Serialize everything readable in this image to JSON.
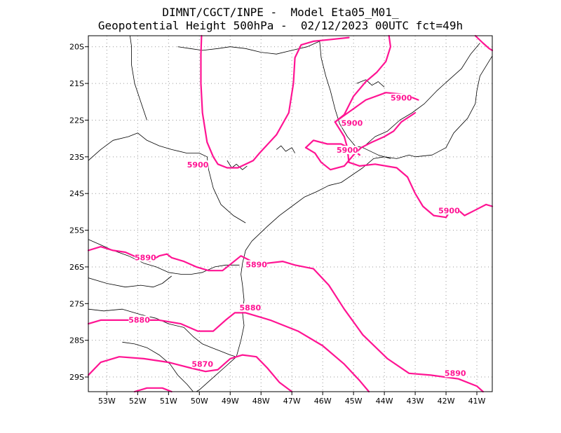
{
  "title": {
    "line1": "DIMNT/CGCT/INPE -  Model Eta05_M01_",
    "line2": "Geopotential Height 500hPa -  02/12/2023 00UTC fct=49h"
  },
  "colors": {
    "contour": "#ff1493",
    "coast": "#000000",
    "grid": "#999999",
    "frame": "#000000"
  },
  "map": {
    "lon_range": [
      -53.6,
      -40.5
    ],
    "lat_range": [
      -29.4,
      -19.7
    ],
    "grid_lines": "dotted",
    "lon_ticks": [
      {
        "value": -53,
        "label": "53W"
      },
      {
        "value": -52,
        "label": "52W"
      },
      {
        "value": -51,
        "label": "51W"
      },
      {
        "value": -50,
        "label": "50W"
      },
      {
        "value": -49,
        "label": "49W"
      },
      {
        "value": -48,
        "label": "48W"
      },
      {
        "value": -47,
        "label": "47W"
      },
      {
        "value": -46,
        "label": "46W"
      },
      {
        "value": -45,
        "label": "45W"
      },
      {
        "value": -44,
        "label": "44W"
      },
      {
        "value": -43,
        "label": "43W"
      },
      {
        "value": -42,
        "label": "42W"
      },
      {
        "value": -41,
        "label": "41W"
      }
    ],
    "lat_ticks": [
      {
        "value": -20,
        "label": "20S"
      },
      {
        "value": -21,
        "label": "21S"
      },
      {
        "value": -22,
        "label": "22S"
      },
      {
        "value": -23,
        "label": "23S"
      },
      {
        "value": -24,
        "label": "24S"
      },
      {
        "value": -25,
        "label": "25S"
      },
      {
        "value": -26,
        "label": "26S"
      },
      {
        "value": -27,
        "label": "27S"
      },
      {
        "value": -28,
        "label": "28S"
      },
      {
        "value": -29,
        "label": "29S"
      }
    ],
    "contour_labels": [
      {
        "text": "5900",
        "lon": -50.05,
        "lat": -23.25
      },
      {
        "text": "5900",
        "lon": -43.45,
        "lat": -21.43
      },
      {
        "text": "5900",
        "lon": -45.05,
        "lat": -22.12
      },
      {
        "text": "5900",
        "lon": -45.2,
        "lat": -22.85
      },
      {
        "text": "5900",
        "lon": -41.9,
        "lat": -24.5
      },
      {
        "text": "5890",
        "lon": -51.75,
        "lat": -25.78
      },
      {
        "text": "5890",
        "lon": -48.15,
        "lat": -25.97
      },
      {
        "text": "5890",
        "lon": -41.7,
        "lat": -28.93
      },
      {
        "text": "5880",
        "lon": -51.95,
        "lat": -27.48
      },
      {
        "text": "5880",
        "lon": -48.35,
        "lat": -27.15
      },
      {
        "text": "5870",
        "lon": -49.9,
        "lat": -28.68
      }
    ],
    "contours": [
      [
        [
          -49.93,
          -19.7
        ],
        [
          -49.95,
          -20.2
        ],
        [
          -49.95,
          -21.0
        ],
        [
          -49.9,
          -21.8
        ],
        [
          -49.75,
          -22.6
        ],
        [
          -49.55,
          -23.0
        ],
        [
          -49.4,
          -23.2
        ],
        [
          -49.1,
          -23.3
        ],
        [
          -48.75,
          -23.3
        ],
        [
          -48.25,
          -23.1
        ],
        [
          -48.05,
          -22.9
        ],
        [
          -47.5,
          -22.4
        ],
        [
          -47.1,
          -21.8
        ],
        [
          -46.95,
          -21.0
        ],
        [
          -46.9,
          -20.3
        ],
        [
          -46.7,
          -19.95
        ],
        [
          -46.3,
          -19.85
        ],
        [
          -45.7,
          -19.8
        ],
        [
          -45.15,
          -19.75
        ]
      ],
      [
        [
          -43.85,
          -19.7
        ],
        [
          -43.8,
          -20.0
        ],
        [
          -43.95,
          -20.4
        ],
        [
          -44.25,
          -20.7
        ],
        [
          -44.6,
          -20.95
        ],
        [
          -45.0,
          -21.35
        ],
        [
          -45.3,
          -21.85
        ],
        [
          -45.6,
          -22.05
        ]
      ],
      [
        [
          -45.6,
          -22.05
        ],
        [
          -45.1,
          -21.75
        ],
        [
          -44.6,
          -21.45
        ],
        [
          -43.95,
          -21.25
        ],
        [
          -43.35,
          -21.3
        ],
        [
          -42.9,
          -21.45
        ]
      ],
      [
        [
          -45.6,
          -22.05
        ],
        [
          -45.3,
          -22.45
        ],
        [
          -45.2,
          -22.75
        ],
        [
          -45.15,
          -23.15
        ],
        [
          -44.8,
          -23.25
        ],
        [
          -44.3,
          -23.2
        ],
        [
          -43.6,
          -23.3
        ],
        [
          -43.25,
          -23.55
        ],
        [
          -43.0,
          -24.0
        ],
        [
          -42.75,
          -24.35
        ],
        [
          -42.4,
          -24.6
        ],
        [
          -42.0,
          -24.65
        ],
        [
          -41.8,
          -24.4
        ],
        [
          -41.6,
          -24.45
        ],
        [
          -41.4,
          -24.6
        ],
        [
          -41.05,
          -24.45
        ],
        [
          -40.7,
          -24.3
        ],
        [
          -40.5,
          -24.35
        ]
      ],
      [
        [
          -46.55,
          -22.75
        ],
        [
          -46.25,
          -22.9
        ],
        [
          -46.05,
          -23.15
        ],
        [
          -45.75,
          -23.35
        ],
        [
          -45.3,
          -23.25
        ],
        [
          -45.0,
          -22.95
        ],
        [
          -44.75,
          -22.75
        ],
        [
          -44.4,
          -22.6
        ],
        [
          -44.0,
          -22.45
        ],
        [
          -43.7,
          -22.3
        ],
        [
          -43.45,
          -22.05
        ],
        [
          -43.0,
          -21.8
        ]
      ],
      [
        [
          -46.55,
          -22.75
        ],
        [
          -46.3,
          -22.55
        ],
        [
          -45.85,
          -22.65
        ],
        [
          -45.4,
          -22.65
        ],
        [
          -45.05,
          -22.8
        ],
        [
          -44.8,
          -22.95
        ]
      ],
      [
        [
          -41.05,
          -19.7
        ],
        [
          -40.8,
          -19.9
        ],
        [
          -40.6,
          -20.05
        ],
        [
          -40.5,
          -20.1
        ]
      ],
      [
        [
          -53.6,
          -25.55
        ],
        [
          -53.2,
          -25.45
        ],
        [
          -52.8,
          -25.55
        ],
        [
          -52.4,
          -25.6
        ],
        [
          -52.0,
          -25.75
        ],
        [
          -51.6,
          -25.85
        ],
        [
          -51.3,
          -25.7
        ],
        [
          -51.05,
          -25.65
        ],
        [
          -50.9,
          -25.75
        ],
        [
          -50.5,
          -25.85
        ],
        [
          -50.1,
          -26.0
        ],
        [
          -49.7,
          -26.1
        ],
        [
          -49.25,
          -26.1
        ],
        [
          -48.95,
          -25.9
        ],
        [
          -48.65,
          -25.7
        ],
        [
          -48.3,
          -25.85
        ],
        [
          -47.8,
          -25.9
        ],
        [
          -47.3,
          -25.85
        ],
        [
          -46.9,
          -25.95
        ],
        [
          -46.3,
          -26.05
        ],
        [
          -45.8,
          -26.5
        ],
        [
          -45.3,
          -27.15
        ],
        [
          -44.7,
          -27.85
        ],
        [
          -43.9,
          -28.5
        ],
        [
          -43.2,
          -28.9
        ],
        [
          -42.5,
          -28.95
        ],
        [
          -41.6,
          -29.05
        ],
        [
          -41.0,
          -29.25
        ],
        [
          -40.8,
          -29.4
        ]
      ],
      [
        [
          -53.6,
          -27.55
        ],
        [
          -53.2,
          -27.45
        ],
        [
          -52.6,
          -27.45
        ],
        [
          -52.0,
          -27.45
        ],
        [
          -51.3,
          -27.45
        ],
        [
          -50.6,
          -27.55
        ],
        [
          -50.05,
          -27.75
        ],
        [
          -49.55,
          -27.75
        ],
        [
          -49.15,
          -27.45
        ],
        [
          -48.85,
          -27.25
        ],
        [
          -48.5,
          -27.25
        ],
        [
          -47.7,
          -27.45
        ],
        [
          -46.8,
          -27.75
        ],
        [
          -46.0,
          -28.15
        ],
        [
          -45.3,
          -28.65
        ],
        [
          -44.8,
          -29.1
        ],
        [
          -44.5,
          -29.4
        ]
      ],
      [
        [
          -53.6,
          -28.95
        ],
        [
          -53.2,
          -28.6
        ],
        [
          -52.6,
          -28.45
        ],
        [
          -51.8,
          -28.5
        ],
        [
          -51.0,
          -28.6
        ],
        [
          -50.3,
          -28.75
        ],
        [
          -49.8,
          -28.85
        ],
        [
          -49.4,
          -28.8
        ],
        [
          -49.0,
          -28.5
        ],
        [
          -48.6,
          -28.4
        ],
        [
          -48.15,
          -28.45
        ],
        [
          -47.8,
          -28.75
        ],
        [
          -47.4,
          -29.15
        ],
        [
          -47.0,
          -29.4
        ]
      ],
      [
        [
          -52.1,
          -29.4
        ],
        [
          -51.7,
          -29.3
        ],
        [
          -51.2,
          -29.3
        ],
        [
          -50.9,
          -29.4
        ]
      ]
    ],
    "coastline": [
      [
        [
          -40.5,
          -20.25
        ],
        [
          -40.9,
          -20.8
        ],
        [
          -41.0,
          -21.2
        ],
        [
          -41.05,
          -21.55
        ],
        [
          -41.3,
          -21.95
        ],
        [
          -41.75,
          -22.35
        ],
        [
          -42.0,
          -22.75
        ],
        [
          -42.45,
          -22.95
        ],
        [
          -43.0,
          -23.0
        ],
        [
          -43.2,
          -22.95
        ],
        [
          -43.6,
          -23.05
        ],
        [
          -44.0,
          -23.0
        ],
        [
          -44.35,
          -23.05
        ],
        [
          -44.7,
          -23.3
        ],
        [
          -45.05,
          -23.5
        ],
        [
          -45.4,
          -23.7
        ],
        [
          -45.8,
          -23.78
        ],
        [
          -46.2,
          -23.95
        ],
        [
          -46.6,
          -24.1
        ],
        [
          -47.0,
          -24.35
        ],
        [
          -47.4,
          -24.6
        ],
        [
          -47.8,
          -24.9
        ],
        [
          -48.05,
          -25.1
        ],
        [
          -48.3,
          -25.3
        ],
        [
          -48.5,
          -25.55
        ],
        [
          -48.6,
          -25.9
        ],
        [
          -48.65,
          -26.2
        ],
        [
          -48.6,
          -26.5
        ],
        [
          -48.55,
          -26.9
        ],
        [
          -48.6,
          -27.25
        ],
        [
          -48.55,
          -27.6
        ],
        [
          -48.65,
          -28.0
        ],
        [
          -48.8,
          -28.45
        ],
        [
          -49.2,
          -28.75
        ],
        [
          -49.6,
          -29.05
        ],
        [
          -50.0,
          -29.35
        ],
        [
          -50.1,
          -29.4
        ]
      ],
      [
        [
          -53.6,
          -23.1
        ],
        [
          -53.2,
          -22.8
        ],
        [
          -52.8,
          -22.55
        ],
        [
          -52.3,
          -22.45
        ],
        [
          -52.0,
          -22.35
        ],
        [
          -51.7,
          -22.55
        ],
        [
          -51.3,
          -22.7
        ],
        [
          -50.9,
          -22.8
        ],
        [
          -50.4,
          -22.9
        ],
        [
          -50.0,
          -22.9
        ],
        [
          -49.75,
          -23.0
        ],
        [
          -49.7,
          -23.35
        ],
        [
          -49.55,
          -23.85
        ],
        [
          -49.3,
          -24.3
        ],
        [
          -48.9,
          -24.6
        ],
        [
          -48.5,
          -24.8
        ]
      ],
      [
        [
          -53.6,
          -25.25
        ],
        [
          -53.2,
          -25.4
        ],
        [
          -52.8,
          -25.55
        ],
        [
          -52.3,
          -25.7
        ],
        [
          -51.8,
          -25.9
        ],
        [
          -51.4,
          -26.0
        ],
        [
          -51.0,
          -26.15
        ],
        [
          -50.6,
          -26.2
        ],
        [
          -50.25,
          -26.2
        ],
        [
          -49.9,
          -26.15
        ],
        [
          -49.5,
          -26.0
        ],
        [
          -49.15,
          -25.95
        ],
        [
          -48.7,
          -25.95
        ]
      ],
      [
        [
          -53.6,
          -26.3
        ],
        [
          -53.0,
          -26.45
        ],
        [
          -52.4,
          -26.55
        ],
        [
          -51.9,
          -26.5
        ],
        [
          -51.5,
          -26.55
        ],
        [
          -51.2,
          -26.45
        ],
        [
          -50.9,
          -26.25
        ]
      ],
      [
        [
          -53.6,
          -27.15
        ],
        [
          -53.1,
          -27.2
        ],
        [
          -52.5,
          -27.15
        ],
        [
          -51.9,
          -27.3
        ],
        [
          -51.4,
          -27.4
        ],
        [
          -51.0,
          -27.55
        ],
        [
          -50.5,
          -27.65
        ],
        [
          -50.2,
          -27.9
        ],
        [
          -49.9,
          -28.1
        ],
        [
          -49.6,
          -28.2
        ],
        [
          -49.3,
          -28.3
        ],
        [
          -49.0,
          -28.4
        ],
        [
          -48.8,
          -28.45
        ]
      ],
      [
        [
          -52.5,
          -28.05
        ],
        [
          -52.1,
          -28.1
        ],
        [
          -51.7,
          -28.2
        ],
        [
          -51.3,
          -28.4
        ],
        [
          -50.95,
          -28.65
        ],
        [
          -50.7,
          -28.95
        ],
        [
          -50.4,
          -29.2
        ],
        [
          -50.2,
          -29.4
        ]
      ],
      [
        [
          -50.7,
          -20.0
        ],
        [
          -50.3,
          -20.05
        ],
        [
          -49.9,
          -20.1
        ],
        [
          -49.4,
          -20.05
        ],
        [
          -49.0,
          -20.0
        ],
        [
          -48.5,
          -20.05
        ],
        [
          -48.0,
          -20.15
        ],
        [
          -47.5,
          -20.2
        ],
        [
          -47.0,
          -20.1
        ],
        [
          -46.5,
          -20.0
        ],
        [
          -46.1,
          -19.85
        ]
      ],
      [
        [
          -51.7,
          -22.0
        ],
        [
          -51.9,
          -21.5
        ],
        [
          -52.1,
          -21.0
        ],
        [
          -52.2,
          -20.5
        ],
        [
          -52.2,
          -20.0
        ],
        [
          -52.25,
          -19.7
        ]
      ],
      [
        [
          -46.1,
          -19.85
        ],
        [
          -46.05,
          -20.3
        ],
        [
          -45.9,
          -20.8
        ],
        [
          -45.75,
          -21.2
        ],
        [
          -45.6,
          -21.7
        ],
        [
          -45.45,
          -22.1
        ],
        [
          -45.2,
          -22.45
        ],
        [
          -44.95,
          -22.7
        ],
        [
          -44.7,
          -22.75
        ]
      ],
      [
        [
          -44.7,
          -22.75
        ],
        [
          -44.3,
          -22.45
        ],
        [
          -43.9,
          -22.3
        ],
        [
          -43.5,
          -22.0
        ],
        [
          -43.1,
          -21.8
        ],
        [
          -42.7,
          -21.55
        ],
        [
          -42.3,
          -21.2
        ],
        [
          -41.9,
          -20.9
        ],
        [
          -41.5,
          -20.6
        ],
        [
          -41.2,
          -20.2
        ],
        [
          -40.9,
          -19.9
        ]
      ],
      [
        [
          -44.7,
          -22.75
        ],
        [
          -44.2,
          -22.95
        ],
        [
          -43.8,
          -23.05
        ]
      ],
      [
        [
          -44.9,
          -21.0
        ],
        [
          -44.6,
          -20.9
        ],
        [
          -44.4,
          -21.05
        ],
        [
          -44.2,
          -20.95
        ],
        [
          -44.0,
          -21.1
        ]
      ],
      [
        [
          -47.5,
          -22.8
        ],
        [
          -47.35,
          -22.7
        ],
        [
          -47.2,
          -22.85
        ],
        [
          -47.0,
          -22.75
        ],
        [
          -46.9,
          -22.9
        ]
      ],
      [
        [
          -49.1,
          -23.1
        ],
        [
          -48.95,
          -23.3
        ],
        [
          -48.8,
          -23.2
        ],
        [
          -48.6,
          -23.35
        ],
        [
          -48.45,
          -23.25
        ]
      ]
    ]
  }
}
